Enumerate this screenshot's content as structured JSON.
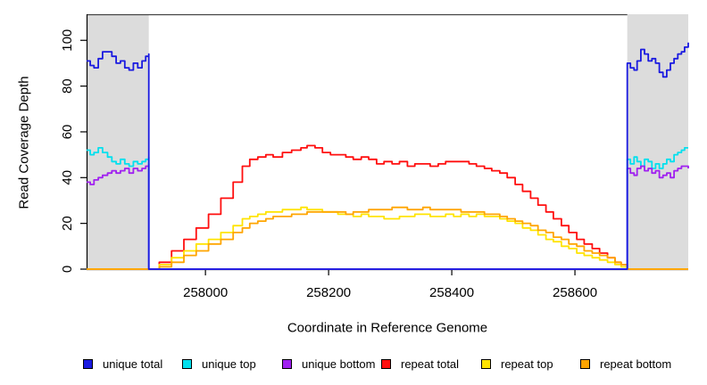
{
  "chart_data": {
    "type": "line",
    "title": "",
    "xlabel": "Coordinate in Reference Genome",
    "ylabel": "Read Coverage Depth",
    "xlim": [
      257807,
      258784
    ],
    "ylim": [
      0,
      111
    ],
    "x_ticks": [
      258000,
      258200,
      258400,
      258600
    ],
    "y_ticks": [
      0,
      20,
      40,
      60,
      80,
      100
    ],
    "grid": false,
    "legend_position": "bottom",
    "background_color": "#ffffff",
    "axis_color": "#000000",
    "shaded_regions": {
      "color": "#dcdcdc",
      "ranges": [
        [
          257807,
          257908
        ],
        [
          258685,
          258784
        ]
      ]
    },
    "draw_order": [
      3,
      4,
      5,
      1,
      2,
      0
    ],
    "series": [
      {
        "name": "unique total",
        "color": "#1a1ae0",
        "points": [
          [
            257807,
            91
          ],
          [
            257813,
            89
          ],
          [
            257819,
            88
          ],
          [
            257826,
            92
          ],
          [
            257833,
            95
          ],
          [
            257841,
            95
          ],
          [
            257848,
            93
          ],
          [
            257855,
            90
          ],
          [
            257862,
            91
          ],
          [
            257869,
            88
          ],
          [
            257876,
            87
          ],
          [
            257883,
            90
          ],
          [
            257890,
            88
          ],
          [
            257897,
            91
          ],
          [
            257903,
            93
          ],
          [
            257908,
            94
          ],
          [
            257908,
            0
          ],
          [
            258684,
            0
          ],
          [
            258685,
            90
          ],
          [
            258690,
            88
          ],
          [
            258696,
            87
          ],
          [
            258701,
            91
          ],
          [
            258707,
            96
          ],
          [
            258713,
            94
          ],
          [
            258719,
            91
          ],
          [
            258725,
            92
          ],
          [
            258731,
            90
          ],
          [
            258737,
            86
          ],
          [
            258743,
            84
          ],
          [
            258749,
            87
          ],
          [
            258755,
            90
          ],
          [
            258761,
            92
          ],
          [
            258767,
            94
          ],
          [
            258773,
            95
          ],
          [
            258778,
            97
          ],
          [
            258784,
            99
          ]
        ]
      },
      {
        "name": "unique top",
        "color": "#00e0ee",
        "points": [
          [
            257807,
            52
          ],
          [
            257813,
            50
          ],
          [
            257819,
            51
          ],
          [
            257826,
            53
          ],
          [
            257833,
            51
          ],
          [
            257841,
            49
          ],
          [
            257848,
            47
          ],
          [
            257855,
            46
          ],
          [
            257862,
            48
          ],
          [
            257869,
            46
          ],
          [
            257876,
            45
          ],
          [
            257883,
            47
          ],
          [
            257890,
            46
          ],
          [
            257897,
            47
          ],
          [
            257903,
            48
          ],
          [
            257908,
            49
          ],
          [
            257908,
            0
          ],
          [
            258684,
            0
          ],
          [
            258685,
            48
          ],
          [
            258690,
            46
          ],
          [
            258696,
            49
          ],
          [
            258701,
            47
          ],
          [
            258707,
            45
          ],
          [
            258713,
            48
          ],
          [
            258719,
            47
          ],
          [
            258725,
            44
          ],
          [
            258731,
            46
          ],
          [
            258737,
            44
          ],
          [
            258743,
            46
          ],
          [
            258749,
            48
          ],
          [
            258755,
            47
          ],
          [
            258761,
            50
          ],
          [
            258767,
            51
          ],
          [
            258773,
            52
          ],
          [
            258778,
            53
          ],
          [
            258784,
            53
          ]
        ]
      },
      {
        "name": "unique bottom",
        "color": "#a020f0",
        "points": [
          [
            257807,
            38
          ],
          [
            257813,
            37
          ],
          [
            257819,
            39
          ],
          [
            257826,
            40
          ],
          [
            257833,
            41
          ],
          [
            257841,
            42
          ],
          [
            257848,
            43
          ],
          [
            257855,
            42
          ],
          [
            257862,
            43
          ],
          [
            257869,
            44
          ],
          [
            257876,
            42
          ],
          [
            257883,
            44
          ],
          [
            257890,
            43
          ],
          [
            257897,
            44
          ],
          [
            257903,
            45
          ],
          [
            257908,
            46
          ],
          [
            257908,
            0
          ],
          [
            258684,
            0
          ],
          [
            258685,
            44
          ],
          [
            258690,
            42
          ],
          [
            258696,
            41
          ],
          [
            258701,
            44
          ],
          [
            258707,
            45
          ],
          [
            258713,
            43
          ],
          [
            258719,
            44
          ],
          [
            258725,
            42
          ],
          [
            258731,
            43
          ],
          [
            258737,
            40
          ],
          [
            258743,
            41
          ],
          [
            258749,
            42
          ],
          [
            258755,
            40
          ],
          [
            258761,
            43
          ],
          [
            258767,
            44
          ],
          [
            258773,
            45
          ],
          [
            258778,
            45
          ],
          [
            258784,
            44
          ]
        ]
      },
      {
        "name": "repeat total",
        "color": "#ff0f0f",
        "points": [
          [
            257807,
            0
          ],
          [
            257908,
            0
          ],
          [
            257925,
            3
          ],
          [
            257945,
            8
          ],
          [
            257965,
            13
          ],
          [
            257985,
            18
          ],
          [
            258005,
            24
          ],
          [
            258025,
            31
          ],
          [
            258045,
            38
          ],
          [
            258060,
            45
          ],
          [
            258072,
            48
          ],
          [
            258085,
            49
          ],
          [
            258098,
            50
          ],
          [
            258110,
            49
          ],
          [
            258125,
            51
          ],
          [
            258140,
            52
          ],
          [
            258155,
            53
          ],
          [
            258165,
            54
          ],
          [
            258178,
            53
          ],
          [
            258190,
            51
          ],
          [
            258203,
            50
          ],
          [
            258215,
            50
          ],
          [
            258228,
            49
          ],
          [
            258240,
            48
          ],
          [
            258253,
            49
          ],
          [
            258265,
            48
          ],
          [
            258278,
            46
          ],
          [
            258290,
            47
          ],
          [
            258303,
            46
          ],
          [
            258315,
            47
          ],
          [
            258328,
            45
          ],
          [
            258340,
            46
          ],
          [
            258353,
            46
          ],
          [
            258365,
            45
          ],
          [
            258378,
            46
          ],
          [
            258390,
            47
          ],
          [
            258403,
            47
          ],
          [
            258415,
            47
          ],
          [
            258428,
            46
          ],
          [
            258440,
            45
          ],
          [
            258453,
            44
          ],
          [
            258465,
            43
          ],
          [
            258478,
            42
          ],
          [
            258490,
            40
          ],
          [
            258503,
            37
          ],
          [
            258515,
            34
          ],
          [
            258528,
            31
          ],
          [
            258540,
            28
          ],
          [
            258553,
            25
          ],
          [
            258565,
            22
          ],
          [
            258578,
            19
          ],
          [
            258590,
            16
          ],
          [
            258603,
            13
          ],
          [
            258615,
            11
          ],
          [
            258628,
            9
          ],
          [
            258640,
            7
          ],
          [
            258653,
            5
          ],
          [
            258665,
            3
          ],
          [
            258675,
            2
          ],
          [
            258685,
            0
          ],
          [
            258784,
            0
          ]
        ]
      },
      {
        "name": "repeat top",
        "color": "#ffe400",
        "points": [
          [
            257807,
            0
          ],
          [
            257908,
            0
          ],
          [
            257925,
            2
          ],
          [
            257945,
            5
          ],
          [
            257965,
            8
          ],
          [
            257985,
            11
          ],
          [
            258005,
            13
          ],
          [
            258025,
            16
          ],
          [
            258045,
            19
          ],
          [
            258060,
            22
          ],
          [
            258072,
            23
          ],
          [
            258085,
            24
          ],
          [
            258098,
            25
          ],
          [
            258110,
            25
          ],
          [
            258125,
            26
          ],
          [
            258140,
            26
          ],
          [
            258155,
            27
          ],
          [
            258165,
            26
          ],
          [
            258178,
            26
          ],
          [
            258190,
            25
          ],
          [
            258203,
            25
          ],
          [
            258215,
            24
          ],
          [
            258228,
            24
          ],
          [
            258240,
            23
          ],
          [
            258253,
            24
          ],
          [
            258265,
            23
          ],
          [
            258278,
            23
          ],
          [
            258290,
            22
          ],
          [
            258303,
            22
          ],
          [
            258315,
            23
          ],
          [
            258328,
            23
          ],
          [
            258340,
            24
          ],
          [
            258353,
            24
          ],
          [
            258365,
            23
          ],
          [
            258378,
            23
          ],
          [
            258390,
            24
          ],
          [
            258403,
            23
          ],
          [
            258415,
            24
          ],
          [
            258428,
            23
          ],
          [
            258440,
            24
          ],
          [
            258453,
            23
          ],
          [
            258465,
            23
          ],
          [
            258478,
            22
          ],
          [
            258490,
            21
          ],
          [
            258503,
            20
          ],
          [
            258515,
            18
          ],
          [
            258528,
            17
          ],
          [
            258540,
            15
          ],
          [
            258553,
            13
          ],
          [
            258565,
            12
          ],
          [
            258578,
            10
          ],
          [
            258590,
            9
          ],
          [
            258603,
            7
          ],
          [
            258615,
            6
          ],
          [
            258628,
            5
          ],
          [
            258640,
            4
          ],
          [
            258653,
            3
          ],
          [
            258665,
            2
          ],
          [
            258675,
            1
          ],
          [
            258685,
            0
          ],
          [
            258784,
            0
          ]
        ]
      },
      {
        "name": "repeat bottom",
        "color": "#ffa500",
        "points": [
          [
            257807,
            0
          ],
          [
            257908,
            0
          ],
          [
            257925,
            1
          ],
          [
            257945,
            3
          ],
          [
            257965,
            6
          ],
          [
            257985,
            8
          ],
          [
            258005,
            11
          ],
          [
            258025,
            13
          ],
          [
            258045,
            16
          ],
          [
            258060,
            18
          ],
          [
            258072,
            20
          ],
          [
            258085,
            21
          ],
          [
            258098,
            22
          ],
          [
            258110,
            23
          ],
          [
            258125,
            23
          ],
          [
            258140,
            24
          ],
          [
            258155,
            24
          ],
          [
            258165,
            25
          ],
          [
            258178,
            25
          ],
          [
            258190,
            25
          ],
          [
            258203,
            25
          ],
          [
            258215,
            25
          ],
          [
            258228,
            24
          ],
          [
            258240,
            25
          ],
          [
            258253,
            25
          ],
          [
            258265,
            26
          ],
          [
            258278,
            26
          ],
          [
            258290,
            26
          ],
          [
            258303,
            27
          ],
          [
            258315,
            27
          ],
          [
            258328,
            26
          ],
          [
            258340,
            26
          ],
          [
            258353,
            27
          ],
          [
            258365,
            26
          ],
          [
            258378,
            26
          ],
          [
            258390,
            26
          ],
          [
            258403,
            26
          ],
          [
            258415,
            25
          ],
          [
            258428,
            25
          ],
          [
            258440,
            25
          ],
          [
            258453,
            24
          ],
          [
            258465,
            24
          ],
          [
            258478,
            23
          ],
          [
            258490,
            22
          ],
          [
            258503,
            21
          ],
          [
            258515,
            20
          ],
          [
            258528,
            19
          ],
          [
            258540,
            17
          ],
          [
            258553,
            16
          ],
          [
            258565,
            14
          ],
          [
            258578,
            13
          ],
          [
            258590,
            11
          ],
          [
            258603,
            10
          ],
          [
            258615,
            8
          ],
          [
            258628,
            7
          ],
          [
            258640,
            6
          ],
          [
            258653,
            5
          ],
          [
            258665,
            3
          ],
          [
            258675,
            2
          ],
          [
            258685,
            0
          ],
          [
            258784,
            0
          ]
        ]
      }
    ]
  }
}
